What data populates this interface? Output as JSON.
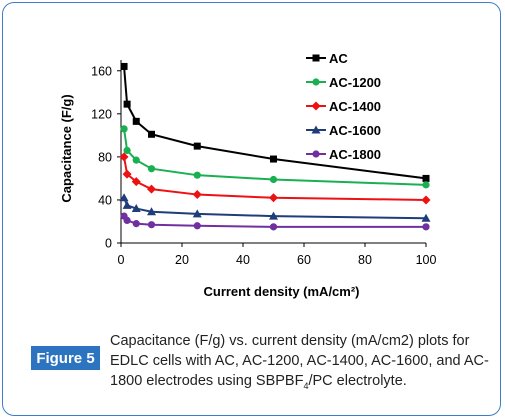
{
  "chart_data": {
    "type": "line",
    "title": "",
    "xlabel": "Current density (mA/cm²)",
    "ylabel": "Capacitance (F/g)",
    "xlim": [
      0,
      100
    ],
    "ylim": [
      0,
      170
    ],
    "xticks": [
      0,
      20,
      40,
      60,
      80,
      100
    ],
    "yticks": [
      0,
      40,
      80,
      120,
      160
    ],
    "legend_position": "top-right",
    "x": [
      1,
      2,
      5,
      10,
      25,
      50,
      100
    ],
    "series": [
      {
        "name": "AC",
        "color": "#000000",
        "marker": "square",
        "values": [
          164,
          129,
          113,
          101,
          90,
          78,
          60
        ]
      },
      {
        "name": "AC-1200",
        "color": "#18b050",
        "marker": "circle",
        "values": [
          106,
          86,
          77,
          69,
          63,
          59,
          54
        ]
      },
      {
        "name": "AC-1400",
        "color": "#ee1111",
        "marker": "diamond",
        "values": [
          80,
          64,
          57,
          50,
          45,
          42,
          40
        ]
      },
      {
        "name": "AC-1600",
        "color": "#1f3d7a",
        "marker": "triangle",
        "values": [
          42,
          35,
          32,
          29,
          27,
          25,
          23
        ]
      },
      {
        "name": "AC-1800",
        "color": "#7030a0",
        "marker": "circle",
        "values": [
          25,
          21,
          18,
          17,
          16,
          15,
          15
        ]
      }
    ]
  },
  "figure": {
    "label": "Figure 5",
    "caption_main": "Capacitance (F/g) vs. current density (mA/cm2) plots for EDLC cells with AC, AC-1200, AC-1400, AC-1600, and AC-1800 electrodes using SBPBF",
    "caption_sub": "4",
    "caption_tail": "/PC electrolyte."
  }
}
